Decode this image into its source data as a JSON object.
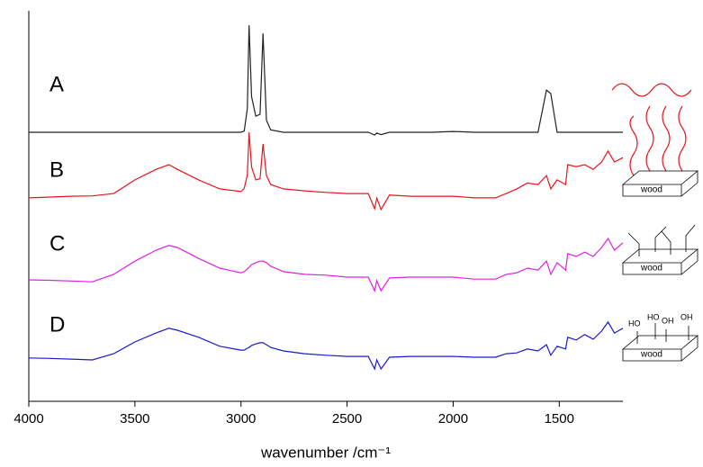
{
  "chart_data": {
    "type": "line",
    "xlabel": "wavenumber /cm⁻¹",
    "x": [
      4000,
      3900,
      3800,
      3700,
      3600,
      3500,
      3400,
      3340,
      3300,
      3200,
      3100,
      3000,
      2985,
      2970,
      2962,
      2950,
      2930,
      2910,
      2896,
      2880,
      2860,
      2800,
      2700,
      2600,
      2500,
      2400,
      2370,
      2360,
      2340,
      2300,
      2200,
      2100,
      2000,
      1900,
      1800,
      1750,
      1700,
      1650,
      1600,
      1560,
      1540,
      1510,
      1470,
      1460,
      1420,
      1380,
      1340,
      1300,
      1270,
      1240,
      1200
    ],
    "series": [
      {
        "name": "A",
        "color": "#222222",
        "values": [
          68.9,
          68.9,
          68.9,
          68.9,
          68.9,
          68.9,
          68.9,
          68.9,
          68.9,
          68.9,
          68.9,
          68.9,
          69.2,
          75,
          96.3,
          78,
          73,
          73.5,
          94.2,
          72,
          69.5,
          68.9,
          68.9,
          68.9,
          68.9,
          68.9,
          68.2,
          68.7,
          68.3,
          68.9,
          68.9,
          68.9,
          69.1,
          68.9,
          68.9,
          68.9,
          68.9,
          68.9,
          68.9,
          79.7,
          78.8,
          68.9,
          68.9,
          68.9,
          68.9,
          68.9,
          68.9,
          68.9,
          68.9,
          68.9,
          68.9
        ]
      },
      {
        "name": "B",
        "color": "#e8141c",
        "values": [
          52.1,
          52.3,
          52.5,
          52.6,
          53.2,
          56.7,
          59.4,
          60.6,
          59.4,
          56.7,
          54.4,
          53.7,
          54.5,
          58,
          68.9,
          60,
          56.7,
          57,
          65.9,
          57.8,
          55.5,
          54.4,
          53.9,
          53.5,
          53.2,
          53.2,
          49.3,
          52,
          49.1,
          52.8,
          52.5,
          52.5,
          52.5,
          52.1,
          52.1,
          53.2,
          54.4,
          55.9,
          55.5,
          57.8,
          54.4,
          56.7,
          55.5,
          60.6,
          60.1,
          60.6,
          59.4,
          61.3,
          64.1,
          61.3,
          62.4
        ]
      },
      {
        "name": "C",
        "color": "#e020e0",
        "values": [
          31.1,
          31.0,
          30.8,
          30.6,
          32.5,
          35.9,
          38.7,
          39.9,
          39.4,
          36.6,
          34.1,
          32.9,
          33.2,
          33.9,
          34.3,
          35.0,
          35.5,
          35.9,
          35.9,
          35.5,
          34.6,
          33.2,
          32.5,
          32.3,
          31.8,
          31.8,
          28.3,
          30.9,
          28.3,
          31.6,
          31.8,
          31.8,
          31.8,
          31.3,
          31.3,
          32.5,
          32.9,
          34.1,
          33.6,
          35.9,
          32.5,
          35.5,
          33.6,
          37.8,
          37.1,
          38.2,
          37.1,
          39.4,
          41.7,
          38.7,
          40.6
        ]
      },
      {
        "name": "D",
        "color": "#1a1ad0",
        "values": [
          11.1,
          11.0,
          10.8,
          10.6,
          12.2,
          15.2,
          17.5,
          18.7,
          18.2,
          16.4,
          14.1,
          13.1,
          13.1,
          13.6,
          13.8,
          14.3,
          14.7,
          15.0,
          15.0,
          14.5,
          13.8,
          12.9,
          12.2,
          11.8,
          11.5,
          11.5,
          8.3,
          10.6,
          8.3,
          11.3,
          11.5,
          11.5,
          11.5,
          11.3,
          11.3,
          12.2,
          12.4,
          13.4,
          12.9,
          14.5,
          11.8,
          14.1,
          13.4,
          16.4,
          15.7,
          17.1,
          15.9,
          18.0,
          20.3,
          17.5,
          18.7
        ]
      }
    ],
    "xlim": [
      4000,
      1200
    ],
    "ylim": [
      0,
      100
    ],
    "xticks": [
      4000,
      3500,
      3000,
      2500,
      2000,
      1500
    ],
    "annotations": [
      "wood",
      "wood",
      "wood",
      "HO",
      "HO",
      "OH",
      "OH"
    ]
  }
}
